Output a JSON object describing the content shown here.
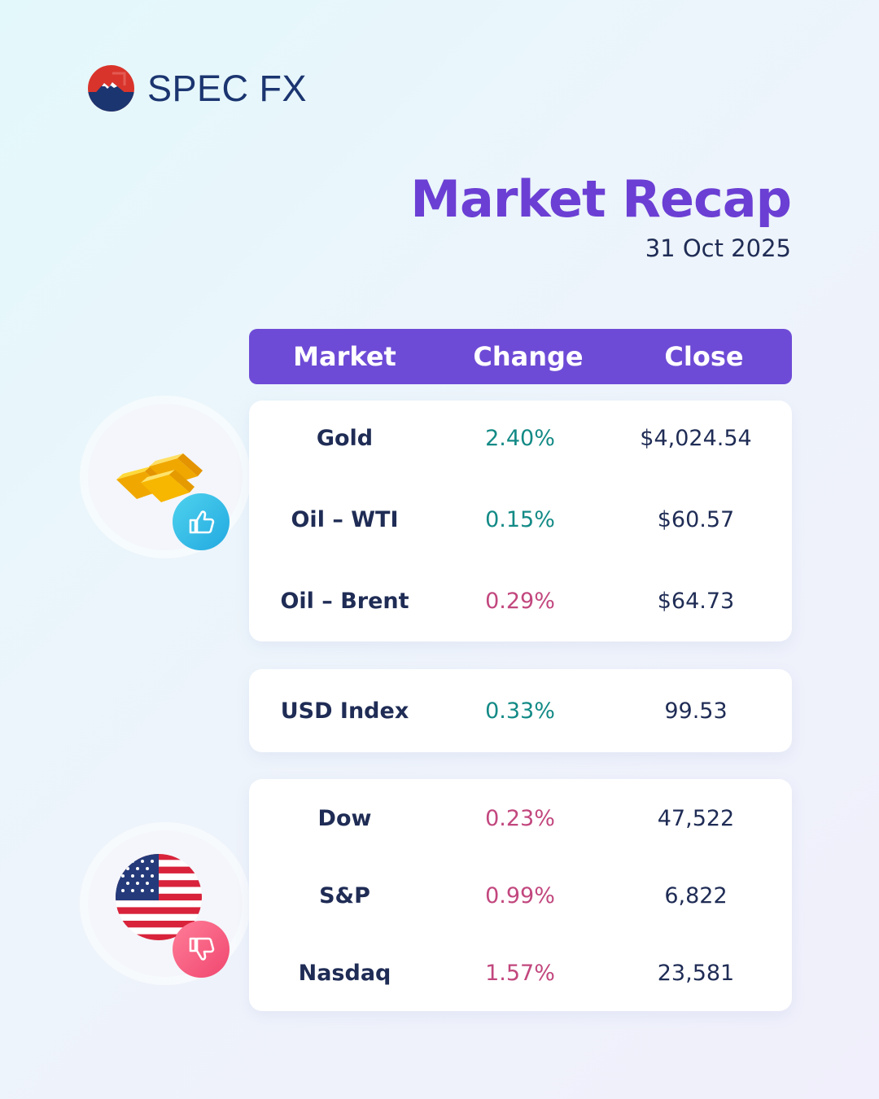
{
  "brand": {
    "name": "SPEC FX"
  },
  "header": {
    "title": "Market Recap",
    "date": "31 Oct 2025"
  },
  "table": {
    "columns": [
      "Market",
      "Change",
      "Close"
    ],
    "groups": [
      {
        "rows": [
          {
            "market": "Gold",
            "change": "2.40%",
            "direction": "up",
            "close": "$4,024.54"
          },
          {
            "market": "Oil – WTI",
            "change": "0.15%",
            "direction": "up",
            "close": "$60.57"
          },
          {
            "market": "Oil – Brent",
            "change": "0.29%",
            "direction": "down",
            "close": "$64.73"
          }
        ]
      },
      {
        "rows": [
          {
            "market": "USD Index",
            "change": "0.33%",
            "direction": "up",
            "close": "99.53"
          }
        ]
      },
      {
        "rows": [
          {
            "market": "Dow",
            "change": "0.23%",
            "direction": "down",
            "close": "47,522"
          },
          {
            "market": "S&P",
            "change": "0.99%",
            "direction": "down",
            "close": "6,822"
          },
          {
            "market": "Nasdaq",
            "change": "1.57%",
            "direction": "down",
            "close": "23,581"
          }
        ]
      }
    ]
  },
  "colors": {
    "accent": "#6e4bd6",
    "title": "#6b3fd4",
    "positive": "#138a86",
    "negative": "#c2477e",
    "text": "#1f2c55"
  },
  "icons": {
    "commodities": "gold-bars-icon",
    "commodities_badge": "thumbs-up-icon",
    "indices": "us-flag-icon",
    "indices_badge": "thumbs-down-icon"
  }
}
